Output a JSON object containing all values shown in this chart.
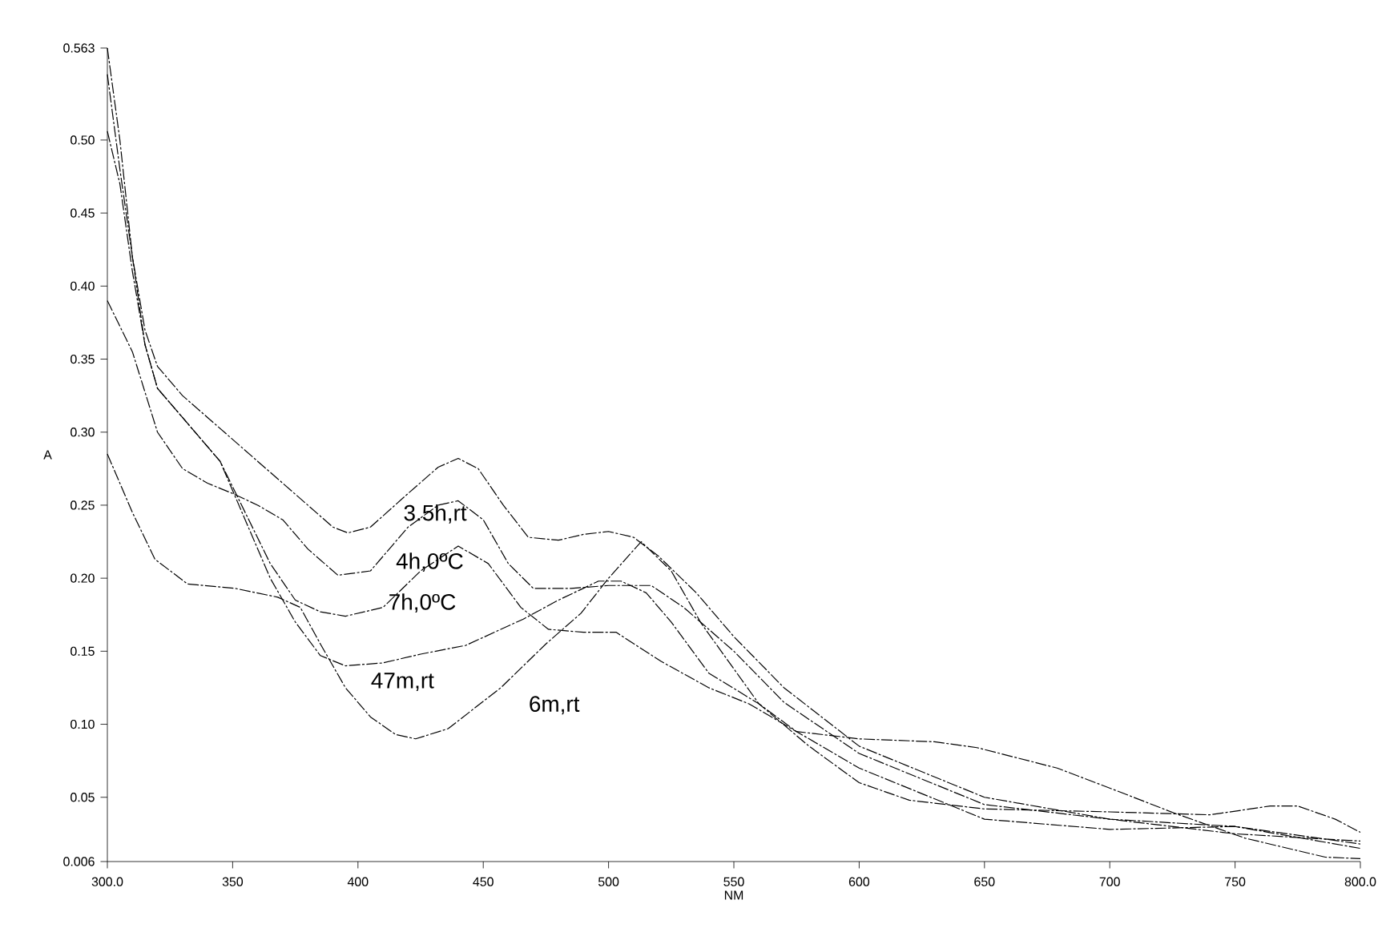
{
  "chart_data": {
    "type": "line",
    "xlabel": "NM",
    "ylabel": "A",
    "xlim": [
      300,
      800
    ],
    "ylim": [
      0.006,
      0.563
    ],
    "xticks": [
      {
        "value": 300,
        "label": "300.0"
      },
      350,
      400,
      450,
      500,
      550,
      600,
      650,
      700,
      750,
      {
        "value": 800,
        "label": "800.0"
      }
    ],
    "yticks": [
      {
        "value": 0.006,
        "label": "0.006"
      },
      {
        "value": 0.05,
        "label": "0.05"
      },
      {
        "value": 0.1,
        "label": "0.10"
      },
      {
        "value": 0.15,
        "label": "0.15"
      },
      {
        "value": 0.2,
        "label": "0.20"
      },
      {
        "value": 0.25,
        "label": "0.25"
      },
      {
        "value": 0.3,
        "label": "0.30"
      },
      {
        "value": 0.35,
        "label": "0.35"
      },
      {
        "value": 0.4,
        "label": "0.40"
      },
      {
        "value": 0.45,
        "label": "0.45"
      },
      {
        "value": 0.5,
        "label": "0.50"
      },
      {
        "value": 0.563,
        "label": "0.563"
      }
    ],
    "grid": false,
    "legend": false,
    "marker": "none",
    "line_style": "dashed",
    "series": [
      {
        "name": "3.5h,rt",
        "color": "#000000",
        "x": [
          300,
          305,
          310,
          315,
          320,
          330,
          340,
          350,
          360,
          370,
          380,
          390,
          396,
          405,
          420,
          432,
          440,
          448,
          458,
          468,
          480,
          490,
          500,
          510,
          520,
          535,
          550,
          570,
          600,
          650,
          700,
          750,
          800
        ],
        "values": [
          0.545,
          0.48,
          0.42,
          0.37,
          0.345,
          0.325,
          0.31,
          0.295,
          0.28,
          0.265,
          0.25,
          0.235,
          0.231,
          0.235,
          0.258,
          0.276,
          0.282,
          0.275,
          0.25,
          0.228,
          0.226,
          0.23,
          0.232,
          0.228,
          0.215,
          0.19,
          0.16,
          0.125,
          0.085,
          0.05,
          0.035,
          0.025,
          0.02
        ]
      },
      {
        "name": "4h,0ºC",
        "color": "#000000",
        "x": [
          300,
          310,
          320,
          330,
          340,
          350,
          360,
          370,
          380,
          392,
          405,
          420,
          432,
          440,
          450,
          460,
          470,
          485,
          500,
          517,
          530,
          550,
          570,
          600,
          650,
          700,
          750,
          800
        ],
        "values": [
          0.39,
          0.355,
          0.3,
          0.275,
          0.265,
          0.258,
          0.25,
          0.24,
          0.22,
          0.202,
          0.205,
          0.235,
          0.25,
          0.253,
          0.24,
          0.21,
          0.193,
          0.193,
          0.195,
          0.195,
          0.18,
          0.15,
          0.115,
          0.08,
          0.045,
          0.035,
          0.03,
          0.015
        ]
      },
      {
        "name": "7h,0ºC",
        "color": "#000000",
        "x": [
          300,
          305,
          310,
          315,
          320,
          330,
          345,
          355,
          365,
          375,
          385,
          395,
          410,
          425,
          440,
          452,
          465,
          476,
          490,
          503,
          521,
          540,
          556,
          575,
          600,
          650,
          700,
          750,
          800
        ],
        "values": [
          0.563,
          0.5,
          0.42,
          0.36,
          0.33,
          0.31,
          0.28,
          0.245,
          0.21,
          0.185,
          0.177,
          0.174,
          0.18,
          0.205,
          0.222,
          0.21,
          0.18,
          0.165,
          0.163,
          0.163,
          0.143,
          0.125,
          0.114,
          0.095,
          0.07,
          0.035,
          0.028,
          0.03,
          0.018
        ]
      },
      {
        "name": "47m,rt",
        "color": "#000000",
        "x": [
          300,
          305,
          310,
          315,
          320,
          330,
          345,
          355,
          365,
          375,
          385,
          395,
          410,
          425,
          443,
          466,
          480,
          496,
          505,
          515,
          525,
          540,
          560,
          575,
          600,
          630,
          647,
          679,
          705,
          726,
          754,
          786,
          800
        ],
        "values": [
          0.506,
          0.47,
          0.41,
          0.36,
          0.33,
          0.31,
          0.28,
          0.24,
          0.2,
          0.17,
          0.147,
          0.14,
          0.142,
          0.148,
          0.154,
          0.172,
          0.185,
          0.198,
          0.198,
          0.19,
          0.17,
          0.135,
          0.114,
          0.095,
          0.09,
          0.088,
          0.084,
          0.07,
          0.053,
          0.039,
          0.022,
          0.009,
          0.008
        ]
      },
      {
        "name": "6m,rt",
        "color": "#000000",
        "x": [
          300,
          310,
          319,
          332,
          351,
          368,
          377,
          385,
          395,
          405,
          415,
          423,
          436,
          457,
          475,
          489,
          500,
          513,
          525,
          537,
          560,
          580,
          600,
          620,
          650,
          700,
          740,
          764,
          775,
          790,
          800
        ],
        "values": [
          0.285,
          0.245,
          0.213,
          0.196,
          0.193,
          0.187,
          0.18,
          0.155,
          0.125,
          0.105,
          0.093,
          0.09,
          0.097,
          0.125,
          0.155,
          0.176,
          0.2,
          0.225,
          0.205,
          0.169,
          0.114,
          0.085,
          0.06,
          0.048,
          0.042,
          0.04,
          0.038,
          0.044,
          0.044,
          0.035,
          0.026
        ]
      }
    ]
  }
}
